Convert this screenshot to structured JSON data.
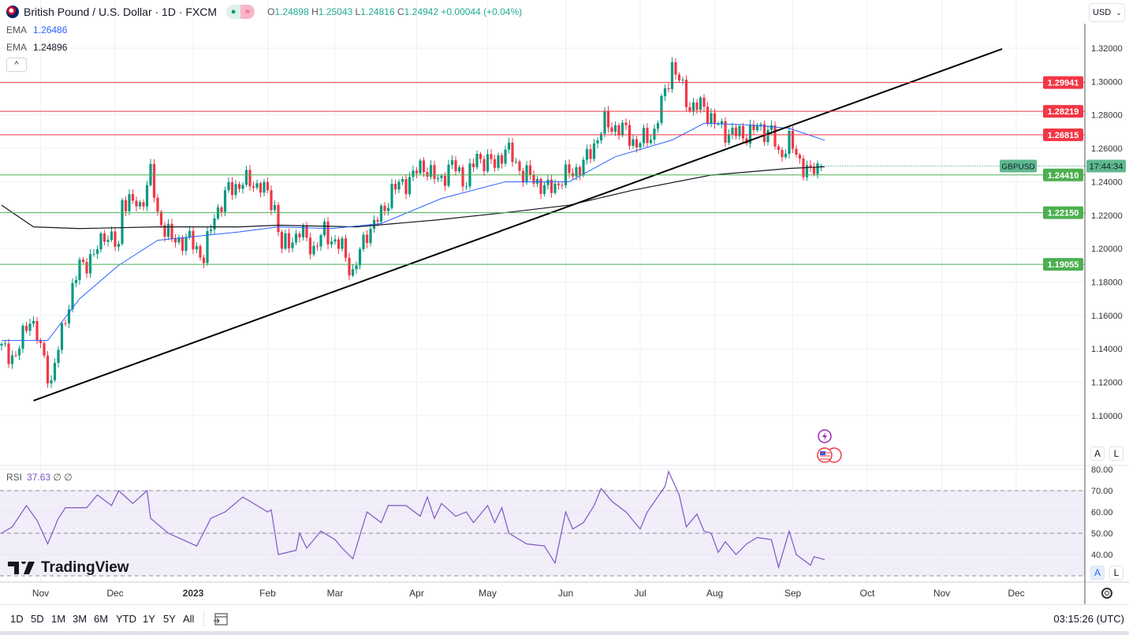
{
  "header": {
    "title": "British Pound / U.S. Dollar · 1D · FXCM",
    "ohlc": {
      "o_label": "O",
      "o": "1.24898",
      "h_label": "H",
      "h": "1.25043",
      "l_label": "L",
      "l": "1.24816",
      "c_label": "C",
      "c": "1.24942",
      "change": "+0.00044 (+0.04%)"
    },
    "ema1": {
      "label": "EMA",
      "value": "1.26486"
    },
    "ema2": {
      "label": "EMA",
      "value": "1.24896"
    },
    "collapse_icon": "^",
    "currency": "USD"
  },
  "rsi": {
    "label": "RSI",
    "value": "37.63",
    "extra1": "∅",
    "extra2": "∅"
  },
  "logo": "TradingView",
  "axis_buttons": {
    "auto": "A",
    "log": "L"
  },
  "toolbar": {
    "ranges": [
      "1D",
      "5D",
      "1M",
      "3M",
      "6M",
      "YTD",
      "1Y",
      "5Y",
      "All"
    ],
    "clock": "03:15:26 (UTC)"
  },
  "colors": {
    "up": "#089981",
    "down": "#f23645",
    "ema50": "#2962ff",
    "ema200": "#131722",
    "rsi": "#7e57c2",
    "resistance": "#f23645",
    "support": "#4caf50"
  },
  "chart_data": {
    "type": "candlestick",
    "symbol_tag": "GBPUSD",
    "countdown": "17:44:34",
    "price_ticks": [
      "1.32000",
      "1.30000",
      "1.28000",
      "1.26000",
      "1.24000",
      "1.22000",
      "1.20000",
      "1.18000",
      "1.16000",
      "1.14000",
      "1.12000",
      "1.10000"
    ],
    "ylim": [
      1.08,
      1.33
    ],
    "time_labels": [
      {
        "label": "Nov",
        "bar": 11,
        "bold": false
      },
      {
        "label": "Dec",
        "bar": 32,
        "bold": false
      },
      {
        "label": "2023",
        "bar": 54,
        "bold": true
      },
      {
        "label": "Feb",
        "bar": 75,
        "bold": false
      },
      {
        "label": "Mar",
        "bar": 94,
        "bold": false
      },
      {
        "label": "Apr",
        "bar": 117,
        "bold": false
      },
      {
        "label": "May",
        "bar": 137,
        "bold": false
      },
      {
        "label": "Jun",
        "bar": 159,
        "bold": false
      },
      {
        "label": "Jul",
        "bar": 180,
        "bold": false
      },
      {
        "label": "Aug",
        "bar": 201,
        "bold": false
      },
      {
        "label": "Sep",
        "bar": 223,
        "bold": false
      },
      {
        "label": "Oct",
        "bar": 244,
        "bold": false
      },
      {
        "label": "Nov",
        "bar": 265,
        "bold": false
      },
      {
        "label": "Dec",
        "bar": 286,
        "bold": false
      }
    ],
    "close_path": [
      [
        0,
        1.14
      ],
      [
        4,
        1.135
      ],
      [
        8,
        1.16
      ],
      [
        11,
        1.14
      ],
      [
        14,
        1.12
      ],
      [
        18,
        1.16
      ],
      [
        22,
        1.19
      ],
      [
        26,
        1.195
      ],
      [
        29,
        1.21
      ],
      [
        33,
        1.2
      ],
      [
        34,
        1.23
      ],
      [
        39,
        1.225
      ],
      [
        42,
        1.245
      ],
      [
        44,
        1.22
      ],
      [
        48,
        1.205
      ],
      [
        53,
        1.205
      ],
      [
        57,
        1.195
      ],
      [
        60,
        1.22
      ],
      [
        64,
        1.235
      ],
      [
        68,
        1.24
      ],
      [
        73,
        1.238
      ],
      [
        77,
        1.225
      ],
      [
        79,
        1.2
      ],
      [
        84,
        1.21
      ],
      [
        88,
        1.2
      ],
      [
        91,
        1.21
      ],
      [
        96,
        1.2
      ],
      [
        99,
        1.185
      ],
      [
        103,
        1.21
      ],
      [
        107,
        1.22
      ],
      [
        110,
        1.235
      ],
      [
        114,
        1.24
      ],
      [
        119,
        1.25
      ],
      [
        123,
        1.24
      ],
      [
        127,
        1.25
      ],
      [
        131,
        1.24
      ],
      [
        134,
        1.255
      ],
      [
        139,
        1.25
      ],
      [
        142,
        1.26
      ],
      [
        147,
        1.245
      ],
      [
        151,
        1.24
      ],
      [
        154,
        1.235
      ],
      [
        160,
        1.245
      ],
      [
        164,
        1.25
      ],
      [
        170,
        1.275
      ],
      [
        176,
        1.27
      ],
      [
        179,
        1.262
      ],
      [
        184,
        1.27
      ],
      [
        189,
        1.31
      ],
      [
        191,
        1.3
      ],
      [
        194,
        1.285
      ],
      [
        198,
        1.285
      ],
      [
        201,
        1.275
      ],
      [
        204,
        1.27
      ],
      [
        209,
        1.268
      ],
      [
        213,
        1.272
      ],
      [
        217,
        1.27
      ],
      [
        219,
        1.255
      ],
      [
        222,
        1.265
      ],
      [
        224,
        1.255
      ],
      [
        228,
        1.245
      ],
      [
        231,
        1.24942
      ]
    ],
    "ema50": {
      "name": "EMA 50",
      "points": [
        [
          0,
          1.145
        ],
        [
          13,
          1.145
        ],
        [
          22,
          1.17
        ],
        [
          33,
          1.19
        ],
        [
          44,
          1.205
        ],
        [
          67,
          1.21
        ],
        [
          78,
          1.213
        ],
        [
          93,
          1.212
        ],
        [
          107,
          1.215
        ],
        [
          124,
          1.23
        ],
        [
          142,
          1.24
        ],
        [
          160,
          1.24
        ],
        [
          173,
          1.255
        ],
        [
          189,
          1.265
        ],
        [
          198,
          1.275
        ],
        [
          211,
          1.274
        ],
        [
          222,
          1.272
        ],
        [
          232,
          1.26486
        ]
      ]
    },
    "ema200": {
      "name": "EMA 200",
      "points": [
        [
          0,
          1.226
        ],
        [
          9,
          1.213
        ],
        [
          22,
          1.212
        ],
        [
          44,
          1.213
        ],
        [
          67,
          1.213
        ],
        [
          78,
          1.214
        ],
        [
          100,
          1.213
        ],
        [
          122,
          1.217
        ],
        [
          144,
          1.222
        ],
        [
          160,
          1.226
        ],
        [
          178,
          1.235
        ],
        [
          200,
          1.244
        ],
        [
          222,
          1.248
        ],
        [
          232,
          1.24896
        ]
      ]
    },
    "trendline": [
      [
        9,
        1.109
      ],
      [
        282,
        1.3195
      ]
    ],
    "levels": [
      {
        "value": "1.29941",
        "type": "resistance"
      },
      {
        "value": "1.28219",
        "type": "resistance"
      },
      {
        "value": "1.26815",
        "type": "resistance"
      },
      {
        "value": "1.24410",
        "type": "support"
      },
      {
        "value": "1.22150",
        "type": "support"
      },
      {
        "value": "1.19055",
        "type": "support"
      }
    ],
    "rsi": {
      "ticks": [
        "80.00",
        "70.00",
        "60.00",
        "50.00",
        "40.00"
      ],
      "overbought": 70,
      "oversold": 30,
      "mid": 50,
      "points": [
        [
          0,
          50
        ],
        [
          3,
          53
        ],
        [
          7,
          63
        ],
        [
          10,
          56
        ],
        [
          13,
          45
        ],
        [
          16,
          57
        ],
        [
          18,
          62
        ],
        [
          24,
          62
        ],
        [
          27,
          68
        ],
        [
          31,
          63
        ],
        [
          33,
          70
        ],
        [
          37,
          64
        ],
        [
          41,
          70
        ],
        [
          42,
          57
        ],
        [
          47,
          50
        ],
        [
          51,
          47
        ],
        [
          55,
          44
        ],
        [
          59,
          57
        ],
        [
          63,
          60
        ],
        [
          68,
          67
        ],
        [
          72,
          63
        ],
        [
          75,
          60
        ],
        [
          76,
          61
        ],
        [
          78,
          40
        ],
        [
          83,
          42
        ],
        [
          84,
          50
        ],
        [
          86,
          43
        ],
        [
          90,
          51
        ],
        [
          94,
          47
        ],
        [
          96,
          43
        ],
        [
          99,
          38
        ],
        [
          103,
          60
        ],
        [
          107,
          55
        ],
        [
          109,
          63
        ],
        [
          114,
          63
        ],
        [
          118,
          58
        ],
        [
          120,
          67
        ],
        [
          122,
          57
        ],
        [
          124,
          64
        ],
        [
          128,
          58
        ],
        [
          131,
          60
        ],
        [
          133,
          55
        ],
        [
          137,
          63
        ],
        [
          139,
          55
        ],
        [
          141,
          62
        ],
        [
          143,
          50
        ],
        [
          148,
          45
        ],
        [
          153,
          44
        ],
        [
          156,
          36
        ],
        [
          159,
          60
        ],
        [
          161,
          52
        ],
        [
          164,
          55
        ],
        [
          167,
          63
        ],
        [
          169,
          71
        ],
        [
          172,
          65
        ],
        [
          176,
          60
        ],
        [
          180,
          52
        ],
        [
          182,
          60
        ],
        [
          187,
          72
        ],
        [
          188,
          79
        ],
        [
          191,
          68
        ],
        [
          193,
          53
        ],
        [
          196,
          59
        ],
        [
          198,
          51
        ],
        [
          200,
          50
        ],
        [
          202,
          41
        ],
        [
          204,
          46
        ],
        [
          207,
          40
        ],
        [
          210,
          45
        ],
        [
          213,
          48
        ],
        [
          217,
          47
        ],
        [
          219,
          34
        ],
        [
          222,
          51
        ],
        [
          224,
          40
        ],
        [
          228,
          35
        ],
        [
          229,
          39
        ],
        [
          232,
          37.63
        ]
      ]
    }
  }
}
